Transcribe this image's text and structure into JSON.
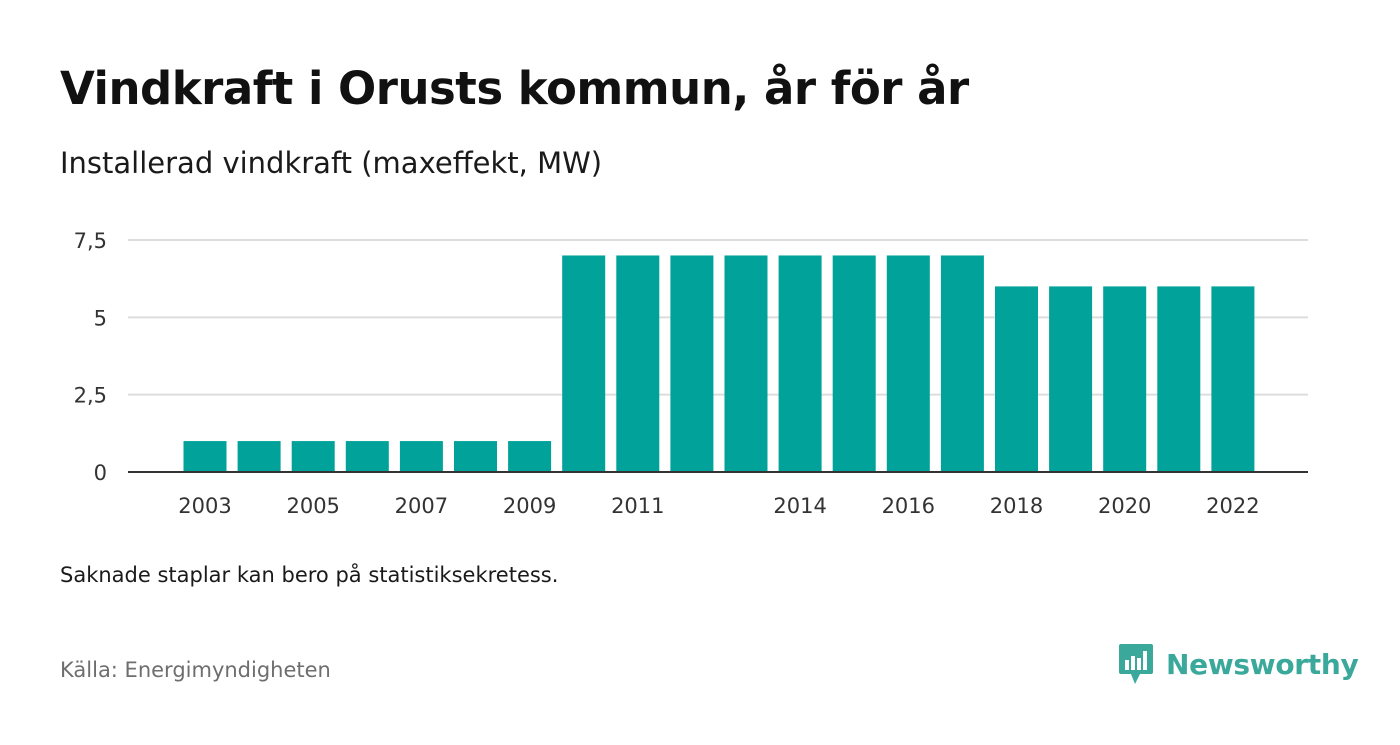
{
  "header": {
    "title": "Vindkraft i Orusts kommun, år för år",
    "subtitle": "Installerad vindkraft (maxeffekt, MW)"
  },
  "footer": {
    "note": "Saknade staplar kan bero på statistiksekretess.",
    "source": "Källa: Energimyndigheten",
    "brand": "Newsworthy"
  },
  "colors": {
    "bar": "#00a29a",
    "grid": "#dddddd",
    "axis": "#333333",
    "brand": "#3aa89a"
  },
  "chart_data": {
    "type": "bar",
    "categories": [
      "2003",
      "2004",
      "2005",
      "2006",
      "2007",
      "2008",
      "2009",
      "2010",
      "2011",
      "2012",
      "2013",
      "2014",
      "2015",
      "2016",
      "2017",
      "2018",
      "2019",
      "2020",
      "2021",
      "2022"
    ],
    "values": [
      1,
      1,
      1,
      1,
      1,
      1,
      1,
      7,
      7,
      7,
      7,
      7,
      7,
      7,
      7,
      6,
      6,
      6,
      6,
      6
    ],
    "x_tick_labels": [
      "2003",
      "2005",
      "2007",
      "2009",
      "2011",
      "2014",
      "2016",
      "2018",
      "2020",
      "2022"
    ],
    "y_ticks": [
      0,
      2.5,
      5,
      7.5
    ],
    "y_tick_labels": [
      "0",
      "2,5",
      "5",
      "7,5"
    ],
    "ylim": [
      0,
      7.5
    ],
    "grid": true,
    "xlabel": "",
    "ylabel": ""
  }
}
